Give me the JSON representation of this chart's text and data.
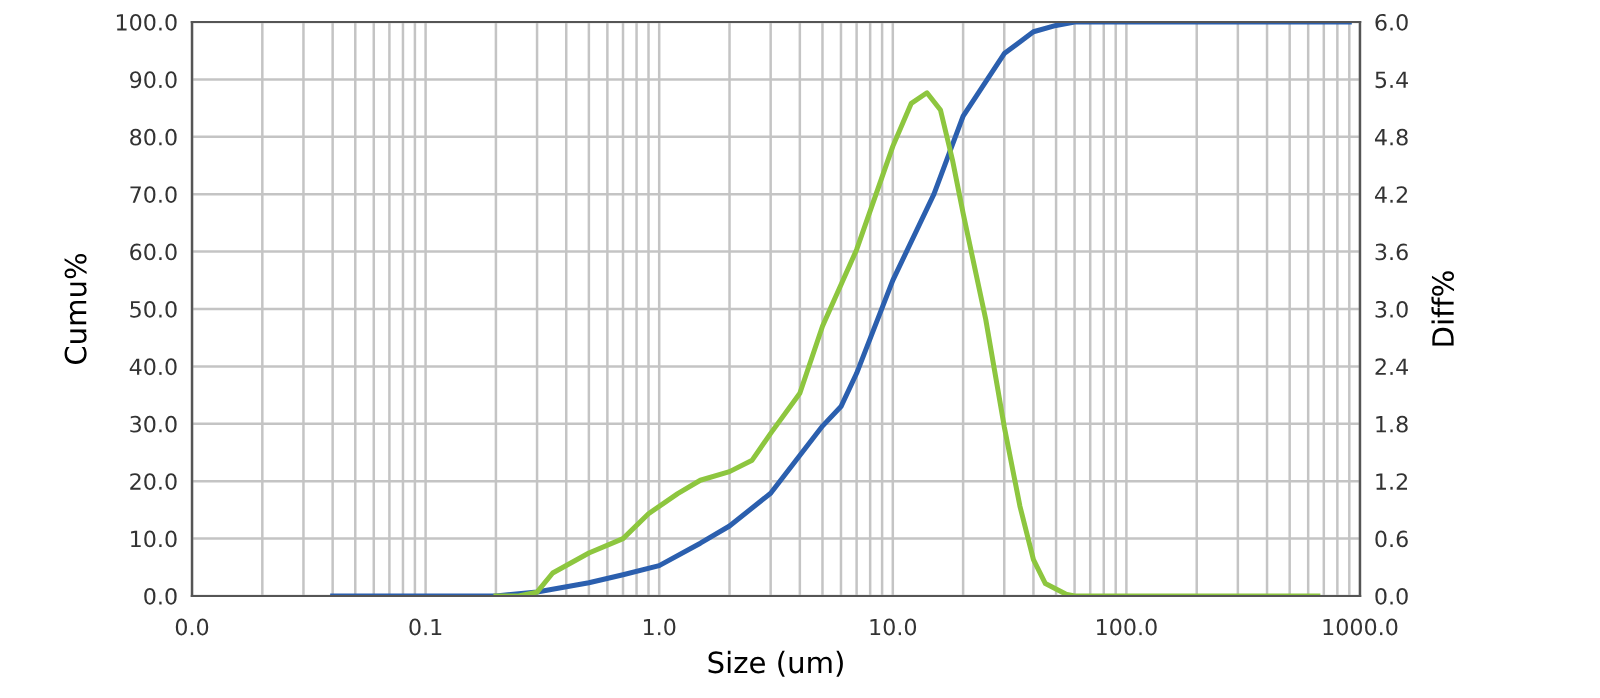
{
  "chart_data": {
    "type": "line",
    "xlabel": "Size (um)",
    "ylabel": "Cumu%",
    "y2label": "Diff%",
    "log": "x",
    "grid": true,
    "xlim": [
      0.01,
      1000
    ],
    "xticks": [
      {
        "value": 0.01,
        "label": "0.0"
      },
      {
        "value": 0.1,
        "label": "0.1"
      },
      {
        "value": 1,
        "label": "1.0"
      },
      {
        "value": 10,
        "label": "10.0"
      },
      {
        "value": 100,
        "label": "100.0"
      },
      {
        "value": 1000,
        "label": "1000.0"
      }
    ],
    "ylim": [
      0,
      100
    ],
    "yticks": [
      {
        "value": 0,
        "label": "0.0"
      },
      {
        "value": 10,
        "label": "10.0"
      },
      {
        "value": 20,
        "label": "20.0"
      },
      {
        "value": 30,
        "label": "30.0"
      },
      {
        "value": 40,
        "label": "40.0"
      },
      {
        "value": 50,
        "label": "50.0"
      },
      {
        "value": 60,
        "label": "60.0"
      },
      {
        "value": 70,
        "label": "70.0"
      },
      {
        "value": 80,
        "label": "80.0"
      },
      {
        "value": 90,
        "label": "90.0"
      },
      {
        "value": 100,
        "label": "100.0"
      }
    ],
    "y2lim": [
      0,
      6
    ],
    "y2ticks": [
      {
        "value": 0,
        "label": "0.0"
      },
      0.6,
      1.2,
      1.8,
      2.4,
      {
        "value": 3,
        "label": "3.0"
      },
      3.6,
      4.2,
      4.8,
      5.4,
      {
        "value": 6,
        "label": "6.0"
      }
    ],
    "series": [
      {
        "color": "#8dc63f",
        "x": [
          0.2,
          0.25,
          0.3,
          0.35,
          0.5,
          0.7,
          0.9,
          1.2,
          1.5,
          2,
          2.5,
          3,
          4,
          5,
          7,
          10,
          12,
          14,
          16,
          18,
          20,
          25,
          30,
          35,
          40,
          45,
          55,
          60,
          100,
          660
        ],
        "values": [
          0,
          0,
          0.04,
          0.24,
          0.45,
          0.6,
          0.86,
          1.07,
          1.21,
          1.3,
          1.42,
          1.7,
          2.12,
          2.82,
          3.62,
          4.7,
          5.15,
          5.26,
          5.08,
          4.56,
          4.0,
          2.89,
          1.77,
          0.94,
          0.38,
          0.13,
          0.02,
          0,
          0,
          0
        ],
        "axis": "y2"
      },
      {
        "color": "#2b5fae",
        "x": [
          0.04,
          0.1,
          0.2,
          0.3,
          0.5,
          0.7,
          1,
          1.5,
          2,
          3,
          5,
          6,
          7,
          10,
          15,
          20,
          30,
          40,
          50,
          60,
          100,
          900
        ],
        "values": [
          0,
          0,
          0,
          0.7,
          2.3,
          3.7,
          5.3,
          9.2,
          12.2,
          17.9,
          29.6,
          33,
          38.8,
          55,
          70,
          83.6,
          94.5,
          98.3,
          99.4,
          100,
          100,
          100
        ]
      }
    ]
  }
}
